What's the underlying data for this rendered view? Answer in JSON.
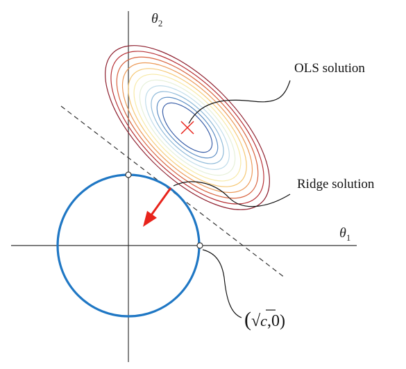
{
  "axes": {
    "x_label": "θ",
    "x_sub": "1",
    "y_label": "θ",
    "y_sub": "2"
  },
  "annotations": {
    "ols": "OLS solution",
    "ridge": "Ridge solution",
    "point_open": "(",
    "point_sqrt": "√",
    "point_c": "c",
    "point_rest": ",0)"
  },
  "colors": {
    "constraint_circle": "#1f77c4",
    "arrow": "#e8231b",
    "ols_marker": "#e8231b",
    "axes": "#333333",
    "tangent_line": "#333333",
    "contours_inner_to_outer": [
      "#3a5fa8",
      "#5d8ec4",
      "#8fbad9",
      "#bfdcea",
      "#e6f0d8",
      "#f7e9a6",
      "#f6c874",
      "#ec9a58",
      "#d8633f",
      "#b73035",
      "#8e1f2e"
    ]
  }
}
